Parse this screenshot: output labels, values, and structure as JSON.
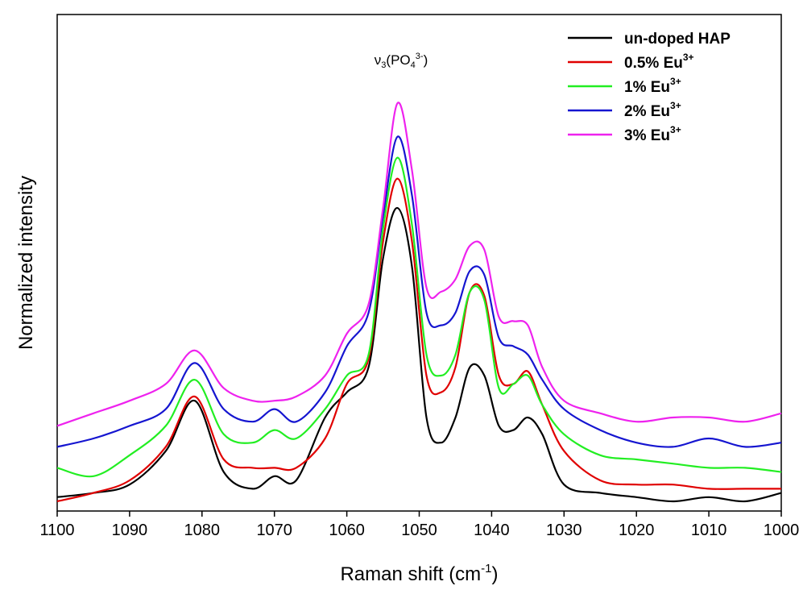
{
  "chart_data": {
    "type": "line",
    "xlabel": "Raman shift (cm",
    "xlabel_superscript": "-1",
    "xlabel_suffix": ")",
    "ylabel": "Normalized intensity",
    "xlim": [
      1100,
      1000
    ],
    "x_reversed": true,
    "x_ticks": [
      1100,
      1090,
      1080,
      1070,
      1060,
      1050,
      1040,
      1030,
      1020,
      1010,
      1000
    ],
    "y_ticks_shown": false,
    "grid": false,
    "legend_position": "top-right",
    "annotation": {
      "base": "ν",
      "sub1": "3",
      "mid": "(PO",
      "sub2": "4",
      "sup": "3-",
      "end": ")",
      "x": 1052.5
    },
    "x": [
      1100,
      1095,
      1090,
      1085,
      1081,
      1077,
      1073,
      1070,
      1067,
      1063,
      1060,
      1057,
      1055,
      1053,
      1051,
      1049,
      1047,
      1045,
      1043,
      1041,
      1039,
      1037,
      1035,
      1033,
      1030,
      1025,
      1020,
      1015,
      1010,
      1005,
      1000
    ],
    "series": [
      {
        "name": "un-doped HAP",
        "color": "#000000",
        "values": [
          0.01,
          0.02,
          0.04,
          0.12,
          0.24,
          0.07,
          0.03,
          0.06,
          0.05,
          0.2,
          0.26,
          0.32,
          0.58,
          0.7,
          0.56,
          0.2,
          0.14,
          0.2,
          0.32,
          0.3,
          0.18,
          0.17,
          0.2,
          0.16,
          0.04,
          0.02,
          0.01,
          0.0,
          0.01,
          0.0,
          0.02
        ]
      },
      {
        "name": "0.5% Eu",
        "superscript": "3+",
        "color": "#e00000",
        "values": [
          0.0,
          0.02,
          0.05,
          0.13,
          0.25,
          0.1,
          0.08,
          0.08,
          0.08,
          0.15,
          0.28,
          0.34,
          0.62,
          0.77,
          0.62,
          0.3,
          0.26,
          0.32,
          0.5,
          0.49,
          0.3,
          0.28,
          0.31,
          0.23,
          0.12,
          0.05,
          0.04,
          0.04,
          0.03,
          0.03,
          0.03
        ]
      },
      {
        "name": "1% Eu",
        "superscript": "3+",
        "color": "#22ee22",
        "values": [
          0.08,
          0.06,
          0.11,
          0.18,
          0.29,
          0.16,
          0.14,
          0.17,
          0.15,
          0.22,
          0.3,
          0.35,
          0.65,
          0.82,
          0.66,
          0.35,
          0.3,
          0.35,
          0.5,
          0.48,
          0.27,
          0.28,
          0.3,
          0.23,
          0.16,
          0.11,
          0.1,
          0.09,
          0.08,
          0.08,
          0.07
        ]
      },
      {
        "name": "2% Eu",
        "superscript": "3+",
        "color": "#1515d0",
        "values": [
          0.13,
          0.15,
          0.18,
          0.22,
          0.33,
          0.22,
          0.19,
          0.22,
          0.19,
          0.26,
          0.37,
          0.45,
          0.68,
          0.87,
          0.73,
          0.45,
          0.42,
          0.45,
          0.55,
          0.54,
          0.39,
          0.37,
          0.35,
          0.29,
          0.22,
          0.17,
          0.14,
          0.13,
          0.15,
          0.13,
          0.14
        ]
      },
      {
        "name": "3% Eu",
        "superscript": "3+",
        "color": "#ee22ee",
        "values": [
          0.18,
          0.21,
          0.24,
          0.28,
          0.36,
          0.27,
          0.24,
          0.24,
          0.25,
          0.3,
          0.4,
          0.47,
          0.7,
          0.95,
          0.79,
          0.51,
          0.5,
          0.53,
          0.61,
          0.6,
          0.44,
          0.43,
          0.42,
          0.32,
          0.24,
          0.21,
          0.19,
          0.2,
          0.2,
          0.19,
          0.21
        ]
      }
    ]
  }
}
